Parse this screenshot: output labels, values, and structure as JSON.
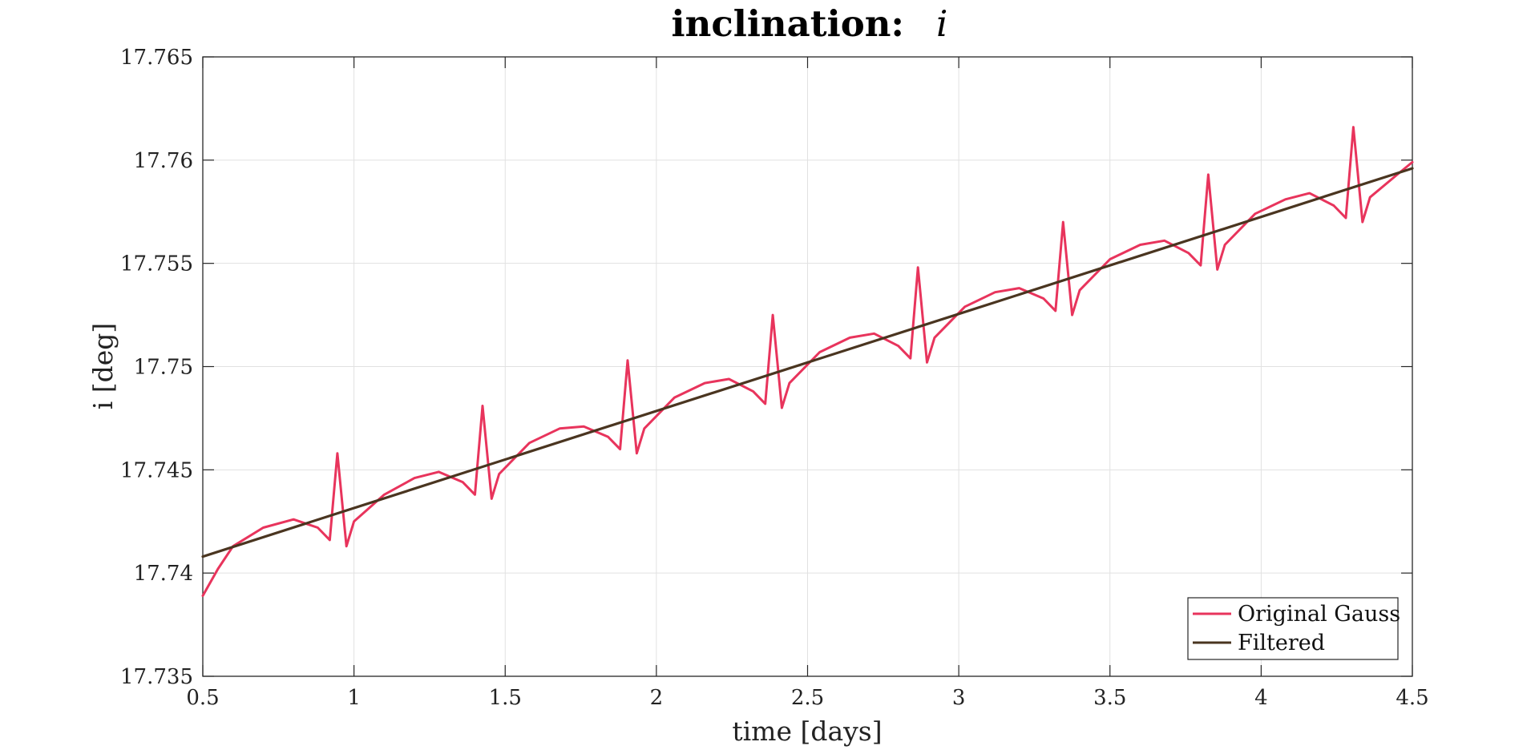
{
  "chart_data": {
    "type": "line",
    "title": "inclination:",
    "title_symbol": "i",
    "xlabel": "time [days]",
    "ylabel": "i [deg]",
    "xlim": [
      0.5,
      4.5
    ],
    "ylim": [
      17.735,
      17.765
    ],
    "xticks": [
      "0.5",
      "1",
      "1.5",
      "2",
      "2.5",
      "3",
      "3.5",
      "4",
      "4.5"
    ],
    "yticks": [
      "17.735",
      "17.74",
      "17.745",
      "17.75",
      "17.755",
      "17.76",
      "17.765"
    ],
    "grid": true,
    "legend_position": "bottom-right",
    "series": [
      {
        "name": "Original Gauss",
        "color": "#e8345c",
        "shape": "trend with one sharp spike per orbit (period about 0.48 days)",
        "x": [
          0.5,
          0.55,
          0.6,
          0.7,
          0.8,
          0.88,
          0.92,
          0.945,
          0.975,
          1.0,
          1.1,
          1.2,
          1.28,
          1.36,
          1.4,
          1.425,
          1.455,
          1.48,
          1.58,
          1.68,
          1.76,
          1.84,
          1.88,
          1.905,
          1.935,
          1.96,
          2.06,
          2.16,
          2.24,
          2.32,
          2.36,
          2.385,
          2.415,
          2.44,
          2.54,
          2.64,
          2.72,
          2.8,
          2.84,
          2.865,
          2.895,
          2.92,
          3.02,
          3.12,
          3.2,
          3.28,
          3.32,
          3.345,
          3.375,
          3.4,
          3.5,
          3.6,
          3.68,
          3.76,
          3.8,
          3.825,
          3.855,
          3.88,
          3.98,
          4.08,
          4.16,
          4.24,
          4.28,
          4.305,
          4.335,
          4.36,
          4.45,
          4.5
        ],
        "y": [
          17.7389,
          17.7402,
          17.7413,
          17.7422,
          17.7426,
          17.7422,
          17.7416,
          17.7458,
          17.7413,
          17.7425,
          17.7438,
          17.7446,
          17.7449,
          17.7444,
          17.7438,
          17.7481,
          17.7436,
          17.7448,
          17.7463,
          17.747,
          17.7471,
          17.7466,
          17.746,
          17.7503,
          17.7458,
          17.747,
          17.7485,
          17.7492,
          17.7494,
          17.7488,
          17.7482,
          17.7525,
          17.748,
          17.7492,
          17.7507,
          17.7514,
          17.7516,
          17.751,
          17.7504,
          17.7548,
          17.7502,
          17.7514,
          17.7529,
          17.7536,
          17.7538,
          17.7533,
          17.7527,
          17.757,
          17.7525,
          17.7537,
          17.7552,
          17.7559,
          17.7561,
          17.7555,
          17.7549,
          17.7593,
          17.7547,
          17.7559,
          17.7574,
          17.7581,
          17.7584,
          17.7578,
          17.7572,
          17.7616,
          17.757,
          17.7582,
          17.7593,
          17.7599
        ]
      },
      {
        "name": "Filtered",
        "color": "#4a3520",
        "x": [
          0.5,
          4.5
        ],
        "y": [
          17.7408,
          17.7596
        ]
      }
    ]
  }
}
